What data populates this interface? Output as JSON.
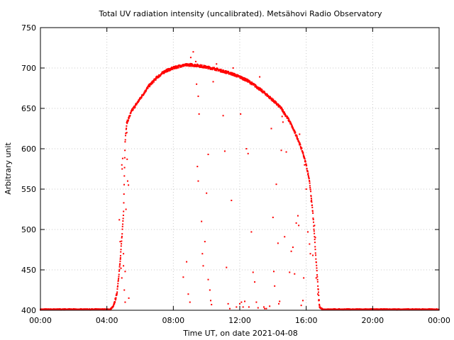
{
  "chart_data": {
    "type": "scatter",
    "title": "Total UV radiation intensity (uncalibrated). Metsähovi Radio Observatory",
    "xlabel": "Time UT, on date 2021-04-08",
    "ylabel": "Arbitrary unit",
    "xlim": [
      0,
      24
    ],
    "ylim": [
      400,
      750
    ],
    "x_unit": "hours UT",
    "x_ticks": [
      {
        "value": 0,
        "label": "00:00"
      },
      {
        "value": 4,
        "label": "04:00"
      },
      {
        "value": 8,
        "label": "08:00"
      },
      {
        "value": 12,
        "label": "12:00"
      },
      {
        "value": 16,
        "label": "16:00"
      },
      {
        "value": 20,
        "label": "20:00"
      },
      {
        "value": 24,
        "label": "00:00"
      }
    ],
    "y_ticks": [
      400,
      450,
      500,
      550,
      600,
      650,
      700,
      750
    ],
    "grid": true,
    "grid_style": "dotted",
    "color": "#ff0000",
    "series": [
      {
        "envelope": [
          [
            0.0,
            401
          ],
          [
            4.2,
            401
          ],
          [
            4.4,
            405
          ],
          [
            4.6,
            420
          ],
          [
            4.8,
            460
          ],
          [
            5.0,
            520
          ],
          [
            5.1,
            610
          ],
          [
            5.2,
            632
          ],
          [
            5.5,
            647
          ],
          [
            6.0,
            662
          ],
          [
            6.5,
            677
          ],
          [
            7.0,
            688
          ],
          [
            7.5,
            696
          ],
          [
            8.0,
            700
          ],
          [
            8.5,
            703
          ],
          [
            9.0,
            704
          ],
          [
            9.5,
            703
          ],
          [
            10.0,
            701
          ],
          [
            10.5,
            699
          ],
          [
            11.0,
            696
          ],
          [
            11.5,
            693
          ],
          [
            12.0,
            689
          ],
          [
            12.5,
            684
          ],
          [
            13.0,
            677
          ],
          [
            13.5,
            669
          ],
          [
            14.0,
            660
          ],
          [
            14.5,
            650
          ],
          [
            15.0,
            634
          ],
          [
            15.5,
            612
          ],
          [
            15.8,
            595
          ],
          [
            16.0,
            580
          ],
          [
            16.2,
            560
          ],
          [
            16.4,
            520
          ],
          [
            16.6,
            460
          ],
          [
            16.8,
            404
          ],
          [
            17.0,
            401
          ],
          [
            24.0,
            401
          ]
        ],
        "scattered_points": [
          [
            4.75,
            512
          ],
          [
            4.8,
            485
          ],
          [
            4.82,
            465
          ],
          [
            4.9,
            580
          ],
          [
            4.92,
            575
          ],
          [
            4.95,
            588
          ],
          [
            5.0,
            470
          ],
          [
            5.05,
            425
          ],
          [
            5.1,
            410
          ],
          [
            5.15,
            525
          ],
          [
            5.2,
            620
          ],
          [
            5.22,
            587
          ],
          [
            5.25,
            560
          ],
          [
            5.3,
            555
          ],
          [
            5.32,
            415
          ],
          [
            4.85,
            452
          ],
          [
            4.9,
            440
          ],
          [
            5.0,
            455
          ],
          [
            5.1,
            448
          ],
          [
            8.6,
            441
          ],
          [
            8.8,
            460
          ],
          [
            8.9,
            420
          ],
          [
            9.0,
            410
          ],
          [
            9.05,
            713
          ],
          [
            9.2,
            720
          ],
          [
            9.35,
            708
          ],
          [
            9.45,
            578
          ],
          [
            9.5,
            560
          ],
          [
            9.55,
            643
          ],
          [
            9.7,
            510
          ],
          [
            9.75,
            470
          ],
          [
            9.8,
            455
          ],
          [
            9.9,
            485
          ],
          [
            10.0,
            545
          ],
          [
            10.1,
            593
          ],
          [
            10.2,
            425
          ],
          [
            10.25,
            412
          ],
          [
            10.3,
            407
          ],
          [
            10.1,
            438
          ],
          [
            9.4,
            680
          ],
          [
            9.5,
            665
          ],
          [
            10.4,
            683
          ],
          [
            10.6,
            705
          ],
          [
            11.0,
            641
          ],
          [
            11.1,
            597
          ],
          [
            11.2,
            453
          ],
          [
            11.3,
            408
          ],
          [
            11.4,
            402
          ],
          [
            11.5,
            536
          ],
          [
            11.6,
            700
          ],
          [
            11.8,
            404
          ],
          [
            12.0,
            408
          ],
          [
            12.05,
            643
          ],
          [
            12.1,
            410
          ],
          [
            12.2,
            404
          ],
          [
            12.3,
            411
          ],
          [
            12.4,
            600
          ],
          [
            12.5,
            594
          ],
          [
            12.55,
            404
          ],
          [
            12.7,
            497
          ],
          [
            12.8,
            447
          ],
          [
            12.9,
            435
          ],
          [
            13.0,
            410
          ],
          [
            13.1,
            403
          ],
          [
            13.2,
            689
          ],
          [
            13.3,
            672
          ],
          [
            13.45,
            404
          ],
          [
            13.5,
            402
          ],
          [
            13.6,
            402
          ],
          [
            13.8,
            405
          ],
          [
            13.9,
            625
          ],
          [
            14.0,
            515
          ],
          [
            14.05,
            448
          ],
          [
            14.1,
            430
          ],
          [
            14.2,
            556
          ],
          [
            14.3,
            483
          ],
          [
            14.35,
            408
          ],
          [
            14.4,
            411
          ],
          [
            14.5,
            598
          ],
          [
            14.55,
            640
          ],
          [
            14.6,
            633
          ],
          [
            14.7,
            491
          ],
          [
            14.8,
            596
          ],
          [
            15.0,
            447
          ],
          [
            15.1,
            473
          ],
          [
            15.2,
            478
          ],
          [
            15.3,
            445
          ],
          [
            15.4,
            508
          ],
          [
            15.5,
            517
          ],
          [
            15.55,
            505
          ],
          [
            15.6,
            618
          ],
          [
            15.7,
            406
          ],
          [
            15.8,
            412
          ],
          [
            15.85,
            440
          ],
          [
            15.9,
            580
          ],
          [
            16.0,
            550
          ],
          [
            16.1,
            497
          ],
          [
            16.2,
            482
          ],
          [
            16.25,
            470
          ],
          [
            16.3,
            535
          ],
          [
            16.4,
            468
          ],
          [
            16.5,
            505
          ],
          [
            16.55,
            490
          ],
          [
            16.6,
            440
          ],
          [
            16.7,
            420
          ],
          [
            16.75,
            412
          ],
          [
            16.8,
            406
          ]
        ]
      }
    ]
  }
}
